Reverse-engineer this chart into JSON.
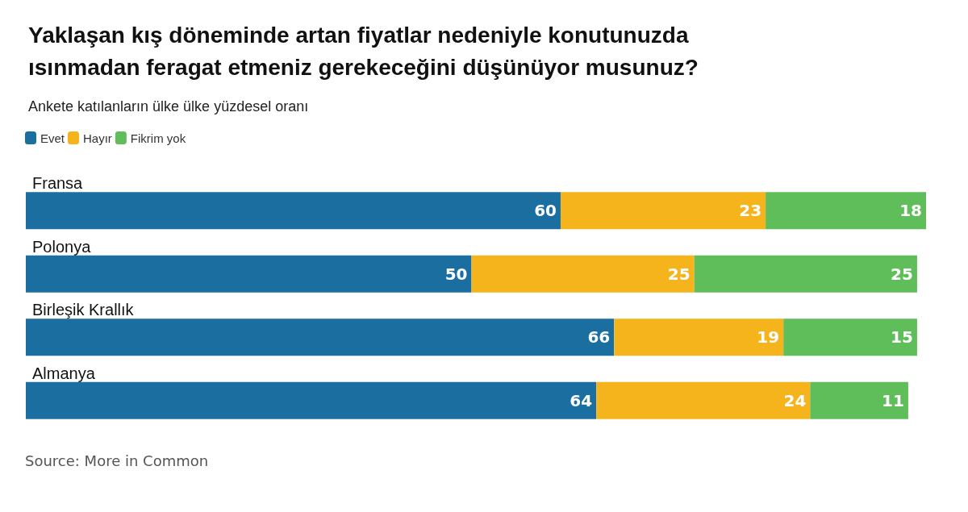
{
  "chart_data": {
    "type": "bar",
    "orientation": "horizontal",
    "stacked": true,
    "title": "Yaklaşan kış döneminde artan fiyatlar nedeniyle konutunuzda ısınmadan feragat etmeniz gerekeceğini düşünüyor musunuz?",
    "subtitle": "Ankete katılanların ülke ülke yüzdesel oranı",
    "annotations": [
      "Source: More in Common"
    ],
    "categories": [
      "Fransa",
      "Polonya",
      "Birleşik Krallık",
      "Almanya"
    ],
    "series": [
      {
        "name": "Evet",
        "color": "#1a6fa0",
        "values": [
          60,
          50,
          66,
          64
        ]
      },
      {
        "name": "Hayır",
        "color": "#f5b41b",
        "values": [
          23,
          25,
          19,
          24
        ]
      },
      {
        "name": "Fikrim yok",
        "color": "#5fbd5a",
        "values": [
          18,
          25,
          15,
          11
        ]
      }
    ],
    "data_labels": true,
    "legend": "top left",
    "grid": false
  }
}
